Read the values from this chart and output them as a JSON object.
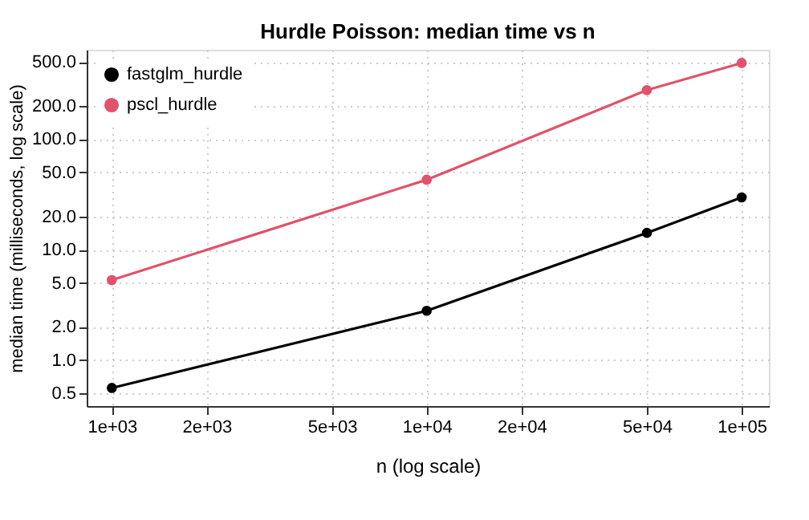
{
  "chart_data": {
    "type": "line",
    "title": "Hurdle Poisson: median time vs n",
    "xlabel": "n (log scale)",
    "ylabel": "median time (milliseconds, log scale)",
    "x": [
      1000,
      10000,
      50000,
      100000
    ],
    "series": [
      {
        "name": "fastglm_hurdle",
        "color": "#000000",
        "values": [
          0.56,
          2.8,
          14.2,
          29.7
        ]
      },
      {
        "name": "pscl_hurdle",
        "color": "#df536b",
        "values": [
          5.3,
          43,
          278,
          490
        ]
      }
    ],
    "log": "xy",
    "xlim": [
      832,
      122000
    ],
    "ylim": [
      0.384,
      645
    ],
    "xticks": [
      {
        "value": 1000,
        "label": "1e+03"
      },
      {
        "value": 2000,
        "label": "2e+03"
      },
      {
        "value": 5000,
        "label": "5e+03"
      },
      {
        "value": 10000,
        "label": "1e+04"
      },
      {
        "value": 20000,
        "label": "2e+04"
      },
      {
        "value": 50000,
        "label": "5e+04"
      },
      {
        "value": 100000,
        "label": "1e+05"
      }
    ],
    "yticks": [
      {
        "value": 0.5,
        "label": "0.5"
      },
      {
        "value": 1,
        "label": "1.0"
      },
      {
        "value": 2,
        "label": "2.0"
      },
      {
        "value": 5,
        "label": "5.0"
      },
      {
        "value": 10,
        "label": "10.0"
      },
      {
        "value": 20,
        "label": "20.0"
      },
      {
        "value": 50,
        "label": "50.0"
      },
      {
        "value": 100,
        "label": "100.0"
      },
      {
        "value": 200,
        "label": "200.0"
      },
      {
        "value": 500,
        "label": "500.0"
      }
    ],
    "grid": true,
    "legend": "top left",
    "marker": "circle",
    "line_style": "solid"
  }
}
